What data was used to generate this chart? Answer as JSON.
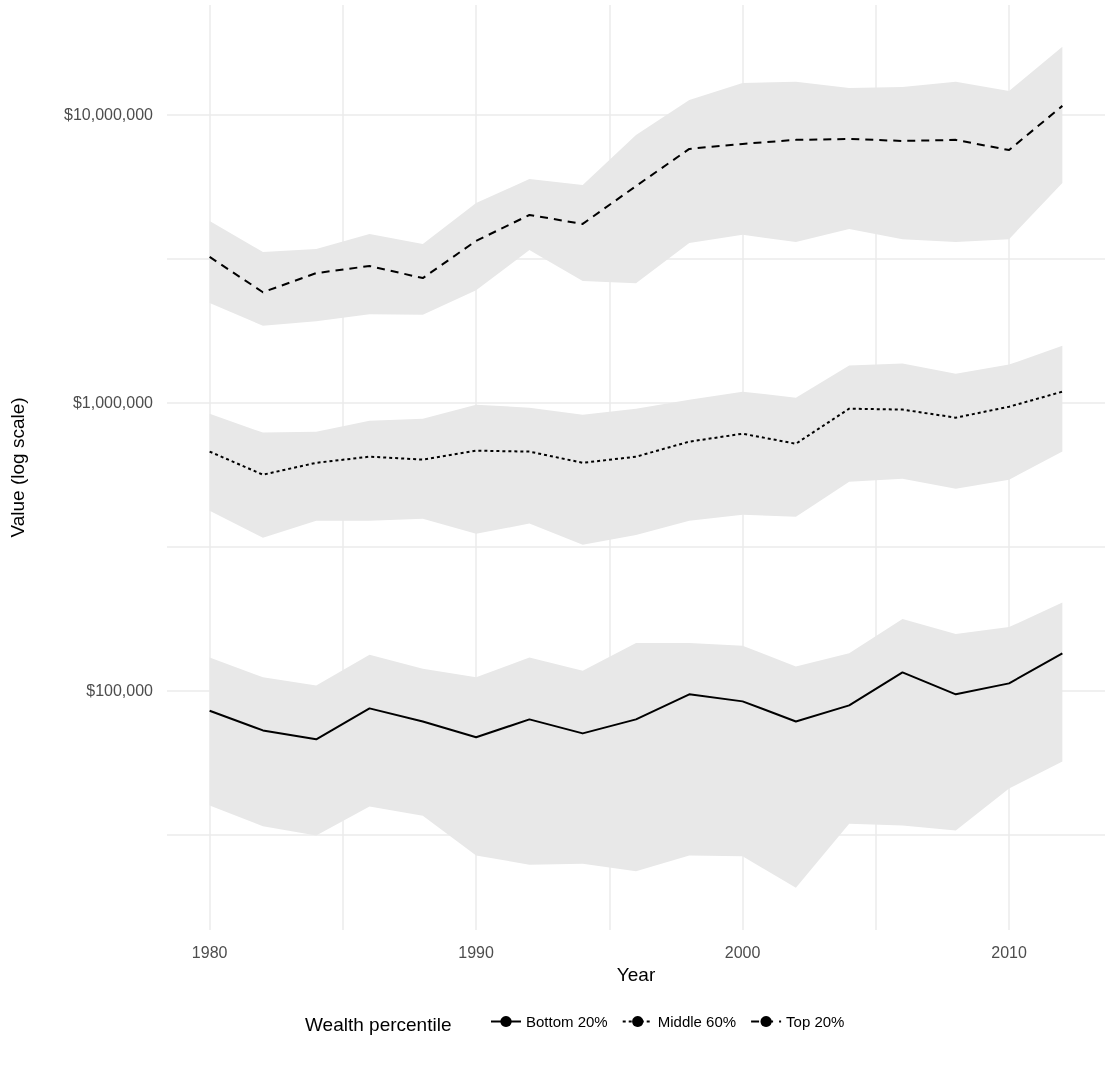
{
  "chart_data": {
    "type": "line",
    "xlabel": "Year",
    "ylabel": "Value (log scale)",
    "legend_title": "Wealth percentile",
    "legend": "bottom",
    "grid": true,
    "log": "y",
    "marker": "none",
    "x": [
      1980,
      1982,
      1984,
      1986,
      1988,
      1990,
      1992,
      1994,
      1996,
      1998,
      2000,
      2002,
      2004,
      2006,
      2008,
      2010,
      2012
    ],
    "xlim": [
      1978.4,
      2013.6
    ],
    "xticks": [
      1980,
      {
        "value": 1985,
        "label": null
      },
      1990,
      {
        "value": 1995,
        "label": null
      },
      2000,
      {
        "value": 2005,
        "label": null
      },
      2010
    ],
    "ylim": [
      14700,
      24100000
    ],
    "yticks": [
      {
        "value": 31623,
        "label": null
      },
      {
        "value": 100000,
        "label": "$100,000"
      },
      {
        "value": 316228,
        "label": null
      },
      {
        "value": 1000000,
        "label": "$1,000,000"
      },
      {
        "value": 3162278,
        "label": null
      },
      {
        "value": 10000000,
        "label": "$10,000,000"
      }
    ],
    "series": [
      {
        "name": "Bottom 20%",
        "color": "#000000",
        "line_style": "solid",
        "values": [
          85000,
          72600,
          67600,
          86600,
          78000,
          68700,
          79300,
          70900,
          79300,
          96900,
          91600,
          78000,
          88700,
          115500,
          96900,
          105800,
          134500
        ],
        "lower": [
          39800,
          33700,
          31300,
          39500,
          36700,
          26700,
          24800,
          25000,
          23500,
          26700,
          26500,
          20600,
          34400,
          33900,
          32600,
          45600,
          56600
        ],
        "upper": [
          130000,
          111000,
          104000,
          133000,
          119000,
          111000,
          130000,
          117000,
          146000,
          146000,
          143000,
          121000,
          134500,
          177000,
          157000,
          166000,
          202000
        ]
      },
      {
        "name": "Middle 60%",
        "color": "#000000",
        "line_style": "dotted",
        "values": [
          676000,
          562000,
          618000,
          649000,
          634000,
          681000,
          676000,
          618000,
          649000,
          732000,
          780000,
          720000,
          953000,
          946000,
          887000,
          968000,
          1092000
        ],
        "lower": [
          421000,
          339000,
          389000,
          389000,
          395000,
          350000,
          380000,
          321000,
          347000,
          389000,
          408000,
          401000,
          531000,
          544000,
          502000,
          540000,
          676000
        ],
        "upper": [
          916000,
          787000,
          793000,
          866000,
          880000,
          984000,
          961000,
          908000,
          953000,
          1024000,
          1092000,
          1041000,
          1345000,
          1367000,
          1261000,
          1356000,
          1578000
        ]
      },
      {
        "name": "Top 20%",
        "color": "#000000",
        "line_style": "dashed",
        "values": [
          3210000,
          2420000,
          2820000,
          2985000,
          2710000,
          3650000,
          4490000,
          4180000,
          5660000,
          7620000,
          7930000,
          8190000,
          8250000,
          8120000,
          8190000,
          7550000,
          10750000
        ],
        "lower": [
          2220000,
          1850000,
          1920000,
          2030000,
          2020000,
          2460000,
          3390000,
          2650000,
          2600000,
          3590000,
          3830000,
          3620000,
          4010000,
          3700000,
          3620000,
          3700000,
          5800000
        ],
        "upper": [
          4280000,
          3340000,
          3420000,
          3860000,
          3560000,
          4940000,
          5990000,
          5710000,
          8520000,
          11270000,
          12920000,
          13030000,
          12410000,
          12510000,
          13030000,
          12120000,
          17240000
        ]
      }
    ]
  }
}
